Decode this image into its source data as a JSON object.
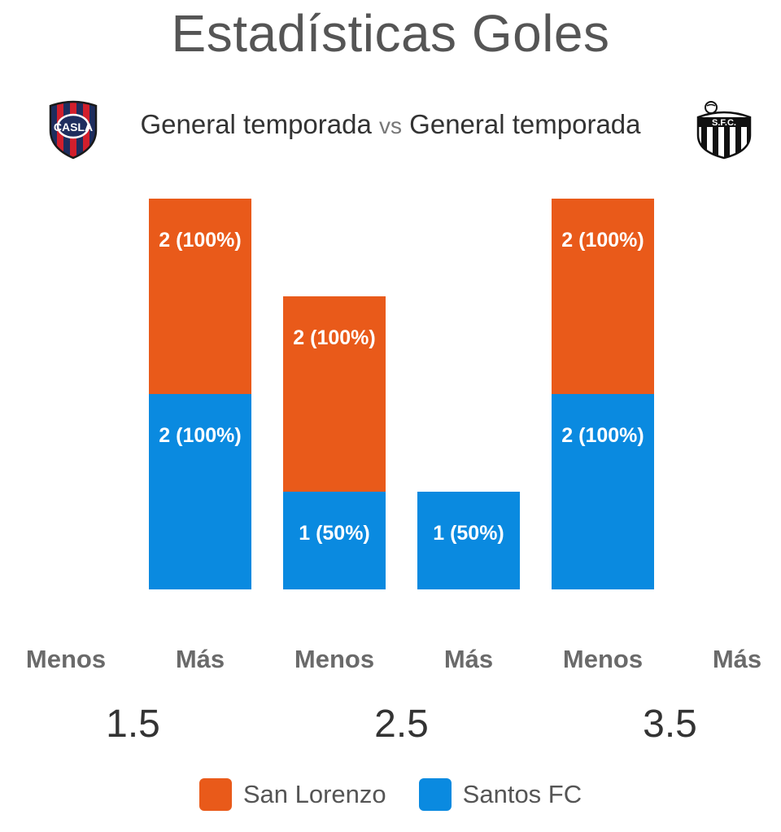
{
  "header": {
    "title": "Estadísticas Goles",
    "left_label": "General temporada",
    "vs": "vs",
    "right_label": "General temporada",
    "left_logo_icon": "san-lorenzo-crest-icon",
    "right_logo_icon": "santos-fc-crest-icon"
  },
  "colors": {
    "san_lorenzo": "#E95A1A",
    "santos": "#0A8AE0"
  },
  "chart_data": {
    "type": "bar",
    "stacked": true,
    "groups": [
      {
        "line": "1.5",
        "categories": [
          "Menos",
          "Más"
        ]
      },
      {
        "line": "2.5",
        "categories": [
          "Menos",
          "Más"
        ]
      },
      {
        "line": "3.5",
        "categories": [
          "Menos",
          "Más"
        ]
      }
    ],
    "categories": [
      "Menos",
      "Más",
      "Menos",
      "Más",
      "Menos",
      "Más"
    ],
    "series": [
      {
        "name": "Santos FC",
        "color": "#0A8AE0",
        "values": [
          0,
          2,
          1,
          1,
          2,
          0
        ],
        "labels": [
          "",
          "2 (100%)",
          "1 (50%)",
          "1 (50%)",
          "2 (100%)",
          ""
        ]
      },
      {
        "name": "San Lorenzo",
        "color": "#E95A1A",
        "values": [
          0,
          2,
          2,
          0,
          2,
          0
        ],
        "labels": [
          "",
          "2 (100%)",
          "2 (100%)",
          "",
          "2 (100%)",
          ""
        ]
      }
    ],
    "ylim": [
      0,
      4
    ],
    "legend_position": "bottom-center",
    "grid": false
  },
  "legend": [
    {
      "label": "San Lorenzo",
      "color": "#E95A1A"
    },
    {
      "label": "Santos FC",
      "color": "#0A8AE0"
    }
  ]
}
